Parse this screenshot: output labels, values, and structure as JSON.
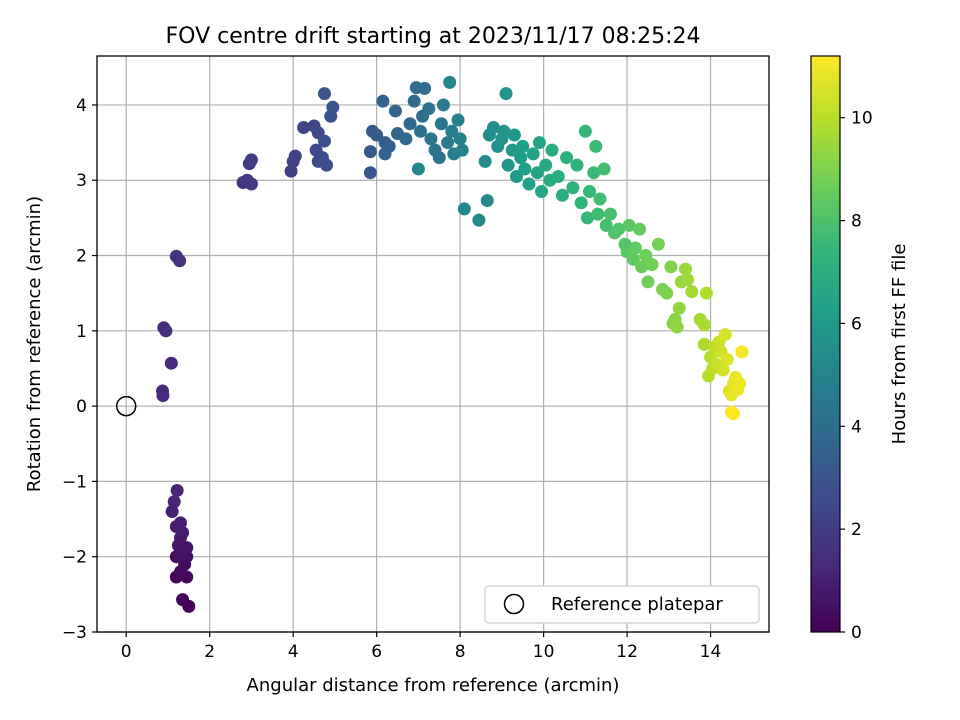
{
  "chart_data": {
    "type": "scatter",
    "title": "FOV centre drift starting at 2023/11/17 08:25:24",
    "xlabel": "Angular distance from reference (arcmin)",
    "ylabel": "Rotation from reference (arcmin)",
    "xlim": [
      -0.7,
      15.4
    ],
    "ylim": [
      -3.0,
      4.65
    ],
    "xticks": [
      0,
      2,
      4,
      6,
      8,
      10,
      12,
      14
    ],
    "yticks": [
      -3,
      -2,
      -1,
      0,
      1,
      2,
      3,
      4
    ],
    "grid": true,
    "colorbar": {
      "label": "Hours from first FF file",
      "min": 0,
      "max": 11.2,
      "ticks": [
        0,
        2,
        4,
        6,
        8,
        10
      ],
      "colormap": "viridis",
      "stops": [
        "#440154",
        "#482878",
        "#3e4989",
        "#31688e",
        "#26828e",
        "#1f9e89",
        "#35b779",
        "#6ece58",
        "#b5de2b",
        "#fde725"
      ]
    },
    "legend": {
      "position": "lower right",
      "entries": [
        "Reference platepar"
      ]
    },
    "reference_point": {
      "x": 0,
      "y": 0
    },
    "series": [
      {
        "points": [
          [
            1.5,
            -2.66
          ],
          [
            1.35,
            -2.57
          ],
          [
            1.2,
            -2.27
          ],
          [
            1.45,
            -2.27
          ],
          [
            1.3,
            -2.2
          ],
          [
            1.4,
            -2.1
          ],
          [
            1.2,
            -2.0
          ],
          [
            1.45,
            -2.0
          ],
          [
            1.35,
            -1.95
          ],
          [
            1.25,
            -1.85
          ],
          [
            1.45,
            -1.88
          ],
          [
            1.3,
            -1.75
          ],
          [
            1.35,
            -1.68
          ],
          [
            1.2,
            -1.6
          ],
          [
            1.3,
            -1.55
          ],
          [
            1.1,
            -1.4
          ],
          [
            1.15,
            -1.27
          ],
          [
            1.22,
            -1.12
          ],
          [
            0.88,
            0.14
          ],
          [
            0.87,
            0.2
          ],
          [
            1.08,
            0.57
          ],
          [
            0.95,
            1.0
          ],
          [
            0.9,
            1.04
          ],
          [
            1.2,
            1.99
          ],
          [
            1.28,
            1.93
          ],
          [
            2.8,
            2.97
          ],
          [
            2.9,
            3.0
          ],
          [
            3.0,
            2.95
          ],
          [
            2.95,
            3.22
          ],
          [
            3.0,
            3.27
          ],
          [
            3.95,
            3.12
          ],
          [
            4.0,
            3.25
          ],
          [
            4.05,
            3.32
          ],
          [
            4.25,
            3.7
          ],
          [
            4.5,
            3.72
          ],
          [
            4.6,
            3.63
          ],
          [
            4.55,
            3.4
          ],
          [
            4.6,
            3.25
          ],
          [
            4.8,
            3.2
          ],
          [
            4.7,
            3.3
          ],
          [
            4.75,
            3.52
          ],
          [
            4.9,
            3.85
          ],
          [
            4.95,
            3.97
          ],
          [
            4.75,
            4.15
          ],
          [
            5.85,
            3.1
          ],
          [
            5.85,
            3.38
          ],
          [
            5.9,
            3.65
          ],
          [
            6.0,
            3.6
          ],
          [
            6.2,
            3.5
          ],
          [
            6.3,
            3.45
          ],
          [
            6.2,
            3.35
          ],
          [
            6.15,
            4.05
          ],
          [
            6.45,
            3.92
          ],
          [
            6.5,
            3.62
          ],
          [
            6.7,
            3.55
          ],
          [
            6.8,
            3.75
          ],
          [
            6.9,
            4.05
          ],
          [
            6.95,
            4.23
          ],
          [
            7.05,
            3.65
          ],
          [
            7.1,
            3.85
          ],
          [
            7.15,
            4.22
          ],
          [
            7.25,
            3.95
          ],
          [
            7.3,
            3.55
          ],
          [
            7.4,
            3.4
          ],
          [
            7.5,
            3.3
          ],
          [
            7.55,
            3.75
          ],
          [
            7.6,
            4.0
          ],
          [
            7.7,
            3.5
          ],
          [
            7.8,
            3.65
          ],
          [
            7.85,
            3.35
          ],
          [
            7.95,
            3.8
          ],
          [
            8.0,
            3.55
          ],
          [
            8.05,
            3.4
          ],
          [
            7.75,
            4.3
          ],
          [
            7.0,
            3.15
          ],
          [
            8.1,
            2.62
          ],
          [
            8.45,
            2.47
          ],
          [
            8.65,
            2.73
          ],
          [
            8.6,
            3.25
          ],
          [
            8.7,
            3.6
          ],
          [
            8.8,
            3.7
          ],
          [
            8.9,
            3.45
          ],
          [
            9.0,
            3.55
          ],
          [
            9.05,
            3.65
          ],
          [
            9.1,
            4.15
          ],
          [
            9.15,
            3.2
          ],
          [
            9.25,
            3.4
          ],
          [
            9.3,
            3.6
          ],
          [
            9.35,
            3.05
          ],
          [
            9.45,
            3.3
          ],
          [
            9.5,
            3.45
          ],
          [
            9.55,
            3.15
          ],
          [
            9.65,
            2.95
          ],
          [
            9.75,
            3.35
          ],
          [
            9.85,
            3.1
          ],
          [
            9.9,
            3.5
          ],
          [
            9.95,
            2.85
          ],
          [
            10.05,
            3.2
          ],
          [
            10.15,
            3.0
          ],
          [
            10.2,
            3.4
          ],
          [
            10.35,
            3.05
          ],
          [
            10.45,
            2.8
          ],
          [
            10.55,
            3.3
          ],
          [
            10.7,
            2.9
          ],
          [
            10.8,
            3.2
          ],
          [
            10.9,
            2.7
          ],
          [
            11.0,
            3.65
          ],
          [
            11.05,
            2.5
          ],
          [
            11.1,
            2.85
          ],
          [
            11.2,
            3.1
          ],
          [
            11.25,
            3.45
          ],
          [
            11.3,
            2.55
          ],
          [
            11.35,
            2.75
          ],
          [
            11.45,
            3.15
          ],
          [
            11.5,
            2.4
          ],
          [
            11.6,
            2.55
          ],
          [
            11.7,
            2.3
          ],
          [
            11.8,
            2.35
          ],
          [
            11.95,
            2.15
          ],
          [
            12.0,
            2.05
          ],
          [
            12.05,
            2.4
          ],
          [
            12.15,
            1.95
          ],
          [
            12.2,
            2.1
          ],
          [
            12.3,
            2.35
          ],
          [
            12.35,
            1.85
          ],
          [
            12.45,
            2.0
          ],
          [
            12.5,
            1.65
          ],
          [
            12.6,
            1.88
          ],
          [
            12.75,
            2.15
          ],
          [
            12.85,
            1.55
          ],
          [
            12.95,
            1.5
          ],
          [
            13.05,
            1.85
          ],
          [
            13.1,
            1.1
          ],
          [
            13.15,
            1.15
          ],
          [
            13.2,
            1.05
          ],
          [
            13.25,
            1.3
          ],
          [
            13.3,
            1.65
          ],
          [
            13.4,
            1.82
          ],
          [
            13.45,
            1.68
          ],
          [
            13.55,
            1.52
          ],
          [
            13.75,
            1.15
          ],
          [
            13.85,
            1.08
          ],
          [
            13.85,
            0.82
          ],
          [
            13.9,
            1.5
          ],
          [
            13.95,
            0.4
          ],
          [
            14.0,
            0.65
          ],
          [
            14.05,
            0.5
          ],
          [
            14.1,
            0.78
          ],
          [
            14.15,
            0.55
          ],
          [
            14.2,
            0.85
          ],
          [
            14.25,
            0.72
          ],
          [
            14.3,
            0.48
          ],
          [
            14.35,
            0.95
          ],
          [
            14.4,
            0.62
          ],
          [
            14.45,
            0.2
          ],
          [
            14.5,
            0.15
          ],
          [
            14.55,
            0.3
          ],
          [
            14.6,
            0.38
          ],
          [
            14.65,
            0.22
          ],
          [
            14.7,
            0.3
          ],
          [
            14.75,
            0.72
          ],
          [
            14.5,
            -0.08
          ],
          [
            14.55,
            -0.1
          ]
        ]
      }
    ]
  }
}
